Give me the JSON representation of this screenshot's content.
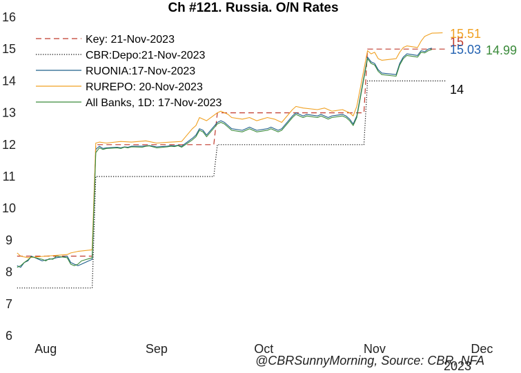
{
  "chart_data": {
    "type": "line",
    "title": "Ch #121. Russia. O/N Rates",
    "credit": "@CBRSunnyMorning, Source: CBR, NFA",
    "xlabel": "",
    "ylabel": "",
    "x_start": "2023-07-25",
    "x_end": "2023-12-10",
    "ylim": [
      6,
      16
    ],
    "yticks": [
      6,
      7,
      8,
      9,
      10,
      11,
      12,
      13,
      14,
      15,
      16
    ],
    "xticks": [
      {
        "date": "2023-08-01",
        "label": "Aug"
      },
      {
        "date": "2023-09-01",
        "label": "Sep"
      },
      {
        "date": "2023-10-01",
        "label": "Oct"
      },
      {
        "date": "2023-11-01",
        "label": "Nov"
      },
      {
        "date": "2023-12-01",
        "label": "Dec"
      }
    ],
    "year_label": "2023",
    "grid": false,
    "legend_position": "top-left",
    "series": [
      {
        "name": "Key: 21-Nov-2023",
        "color": "#c0392b",
        "style": "dashed",
        "end_label": "15",
        "points": [
          [
            "2023-07-24",
            8.5
          ],
          [
            "2023-08-14",
            8.5
          ],
          [
            "2023-08-15",
            12.0
          ],
          [
            "2023-09-17",
            12.0
          ],
          [
            "2023-09-18",
            13.0
          ],
          [
            "2023-10-29",
            13.0
          ],
          [
            "2023-10-30",
            15.0
          ],
          [
            "2023-11-21",
            15.0
          ]
        ]
      },
      {
        "name": "CBR:Depo:21-Nov-2023",
        "color": "#000000",
        "style": "dotted",
        "end_label": "14",
        "points": [
          [
            "2023-07-24",
            7.5
          ],
          [
            "2023-08-14",
            7.5
          ],
          [
            "2023-08-15",
            11.0
          ],
          [
            "2023-09-17",
            11.0
          ],
          [
            "2023-09-18",
            12.0
          ],
          [
            "2023-10-29",
            12.0
          ],
          [
            "2023-10-30",
            14.0
          ],
          [
            "2023-11-21",
            14.0
          ]
        ]
      },
      {
        "name": "RUONIA:17-Nov-2023",
        "color": "#1f5f8b",
        "style": "solid",
        "end_label": "15.03",
        "end_label_color": "#1f5fb0",
        "points": [
          [
            "2023-07-24",
            8.2
          ],
          [
            "2023-07-25",
            8.15
          ],
          [
            "2023-07-26",
            8.3
          ],
          [
            "2023-07-27",
            8.35
          ],
          [
            "2023-07-28",
            8.5
          ],
          [
            "2023-07-31",
            8.35
          ],
          [
            "2023-08-01",
            8.38
          ],
          [
            "2023-08-02",
            8.4
          ],
          [
            "2023-08-03",
            8.42
          ],
          [
            "2023-08-04",
            8.45
          ],
          [
            "2023-08-07",
            8.5
          ],
          [
            "2023-08-08",
            8.3
          ],
          [
            "2023-08-09",
            8.25
          ],
          [
            "2023-08-10",
            8.2
          ],
          [
            "2023-08-11",
            8.25
          ],
          [
            "2023-08-14",
            8.4
          ],
          [
            "2023-08-15",
            11.85
          ],
          [
            "2023-08-16",
            11.95
          ],
          [
            "2023-08-17",
            11.88
          ],
          [
            "2023-08-18",
            11.9
          ],
          [
            "2023-08-21",
            11.92
          ],
          [
            "2023-08-22",
            11.9
          ],
          [
            "2023-08-23",
            11.93
          ],
          [
            "2023-08-24",
            11.92
          ],
          [
            "2023-08-25",
            11.95
          ],
          [
            "2023-08-28",
            11.95
          ],
          [
            "2023-08-29",
            11.96
          ],
          [
            "2023-08-30",
            11.97
          ],
          [
            "2023-08-31",
            11.95
          ],
          [
            "2023-09-01",
            11.93
          ],
          [
            "2023-09-04",
            11.95
          ],
          [
            "2023-09-05",
            11.97
          ],
          [
            "2023-09-06",
            11.96
          ],
          [
            "2023-09-07",
            11.98
          ],
          [
            "2023-09-08",
            11.95
          ],
          [
            "2023-09-11",
            12.2
          ],
          [
            "2023-09-12",
            12.3
          ],
          [
            "2023-09-13",
            12.5
          ],
          [
            "2023-09-14",
            12.45
          ],
          [
            "2023-09-15",
            12.3
          ],
          [
            "2023-09-18",
            12.7
          ],
          [
            "2023-09-19",
            12.75
          ],
          [
            "2023-09-20",
            12.7
          ],
          [
            "2023-09-21",
            12.6
          ],
          [
            "2023-09-22",
            12.5
          ],
          [
            "2023-09-25",
            12.45
          ],
          [
            "2023-09-26",
            12.5
          ],
          [
            "2023-09-27",
            12.55
          ],
          [
            "2023-09-28",
            12.5
          ],
          [
            "2023-09-29",
            12.45
          ],
          [
            "2023-10-02",
            12.5
          ],
          [
            "2023-10-03",
            12.55
          ],
          [
            "2023-10-04",
            12.5
          ],
          [
            "2023-10-05",
            12.45
          ],
          [
            "2023-10-06",
            12.5
          ],
          [
            "2023-10-09",
            12.9
          ],
          [
            "2023-10-10",
            13.0
          ],
          [
            "2023-10-11",
            12.95
          ],
          [
            "2023-10-12",
            12.9
          ],
          [
            "2023-10-13",
            12.95
          ],
          [
            "2023-10-16",
            12.9
          ],
          [
            "2023-10-17",
            12.95
          ],
          [
            "2023-10-18",
            12.9
          ],
          [
            "2023-10-19",
            12.85
          ],
          [
            "2023-10-20",
            12.9
          ],
          [
            "2023-10-23",
            12.95
          ],
          [
            "2023-10-24",
            12.9
          ],
          [
            "2023-10-25",
            12.8
          ],
          [
            "2023-10-26",
            12.65
          ],
          [
            "2023-10-27",
            12.9
          ],
          [
            "2023-10-30",
            14.75
          ],
          [
            "2023-10-31",
            14.6
          ],
          [
            "2023-11-01",
            14.55
          ],
          [
            "2023-11-02",
            14.35
          ],
          [
            "2023-11-03",
            14.25
          ],
          [
            "2023-11-07",
            14.2
          ],
          [
            "2023-11-08",
            14.55
          ],
          [
            "2023-11-09",
            14.75
          ],
          [
            "2023-11-10",
            14.85
          ],
          [
            "2023-11-13",
            14.8
          ],
          [
            "2023-11-14",
            14.95
          ],
          [
            "2023-11-15",
            14.92
          ],
          [
            "2023-11-16",
            15.0
          ],
          [
            "2023-11-17",
            15.03
          ]
        ]
      },
      {
        "name": "RUREPO: 20-Nov-2023",
        "color": "#f0a020",
        "style": "solid",
        "end_label": "15.51",
        "end_label_color": "#f0a020",
        "points": [
          [
            "2023-07-24",
            8.6
          ],
          [
            "2023-07-25",
            8.5
          ],
          [
            "2023-07-27",
            8.45
          ],
          [
            "2023-08-01",
            8.5
          ],
          [
            "2023-08-07",
            8.55
          ],
          [
            "2023-08-08",
            8.6
          ],
          [
            "2023-08-10",
            8.65
          ],
          [
            "2023-08-14",
            8.7
          ],
          [
            "2023-08-15",
            12.05
          ],
          [
            "2023-08-16",
            12.08
          ],
          [
            "2023-08-18",
            12.05
          ],
          [
            "2023-08-22",
            12.1
          ],
          [
            "2023-08-25",
            12.08
          ],
          [
            "2023-08-29",
            12.12
          ],
          [
            "2023-09-01",
            12.05
          ],
          [
            "2023-09-05",
            12.08
          ],
          [
            "2023-09-08",
            12.1
          ],
          [
            "2023-09-11",
            12.5
          ],
          [
            "2023-09-12",
            12.6
          ],
          [
            "2023-09-13",
            12.85
          ],
          [
            "2023-09-15",
            12.75
          ],
          [
            "2023-09-18",
            13.0
          ],
          [
            "2023-09-19",
            13.05
          ],
          [
            "2023-09-21",
            12.95
          ],
          [
            "2023-09-22",
            12.85
          ],
          [
            "2023-09-25",
            12.8
          ],
          [
            "2023-09-27",
            12.85
          ],
          [
            "2023-09-29",
            12.75
          ],
          [
            "2023-10-02",
            12.85
          ],
          [
            "2023-10-04",
            12.8
          ],
          [
            "2023-10-06",
            12.7
          ],
          [
            "2023-10-09",
            13.1
          ],
          [
            "2023-10-10",
            13.2
          ],
          [
            "2023-10-12",
            13.15
          ],
          [
            "2023-10-16",
            13.1
          ],
          [
            "2023-10-18",
            13.15
          ],
          [
            "2023-10-20",
            13.05
          ],
          [
            "2023-10-23",
            13.1
          ],
          [
            "2023-10-25",
            13.0
          ],
          [
            "2023-10-26",
            12.9
          ],
          [
            "2023-10-27",
            13.2
          ],
          [
            "2023-10-30",
            14.95
          ],
          [
            "2023-10-31",
            14.85
          ],
          [
            "2023-11-01",
            14.9
          ],
          [
            "2023-11-02",
            14.7
          ],
          [
            "2023-11-03",
            14.65
          ],
          [
            "2023-11-07",
            14.7
          ],
          [
            "2023-11-08",
            14.9
          ],
          [
            "2023-11-09",
            15.05
          ],
          [
            "2023-11-10",
            15.1
          ],
          [
            "2023-11-13",
            15.05
          ],
          [
            "2023-11-14",
            15.25
          ],
          [
            "2023-11-15",
            15.4
          ],
          [
            "2023-11-16",
            15.45
          ],
          [
            "2023-11-17",
            15.5
          ],
          [
            "2023-11-20",
            15.51
          ]
        ]
      },
      {
        "name": "All Banks, 1D: 17-Nov-2023",
        "color": "#3a8a3a",
        "style": "solid",
        "end_label": "14.99",
        "end_label_color": "#3a8a3a",
        "points": [
          [
            "2023-07-24",
            8.15
          ],
          [
            "2023-07-25",
            8.2
          ],
          [
            "2023-07-26",
            8.3
          ],
          [
            "2023-07-27",
            8.38
          ],
          [
            "2023-07-28",
            8.48
          ],
          [
            "2023-07-31",
            8.4
          ],
          [
            "2023-08-01",
            8.35
          ],
          [
            "2023-08-02",
            8.42
          ],
          [
            "2023-08-03",
            8.4
          ],
          [
            "2023-08-04",
            8.5
          ],
          [
            "2023-08-07",
            8.45
          ],
          [
            "2023-08-08",
            8.25
          ],
          [
            "2023-08-09",
            8.2
          ],
          [
            "2023-08-10",
            8.25
          ],
          [
            "2023-08-11",
            8.35
          ],
          [
            "2023-08-14",
            8.45
          ],
          [
            "2023-08-15",
            11.75
          ],
          [
            "2023-08-16",
            11.9
          ],
          [
            "2023-08-17",
            11.85
          ],
          [
            "2023-08-18",
            11.88
          ],
          [
            "2023-08-21",
            11.9
          ],
          [
            "2023-08-22",
            11.88
          ],
          [
            "2023-08-23",
            11.92
          ],
          [
            "2023-08-24",
            11.9
          ],
          [
            "2023-08-25",
            11.93
          ],
          [
            "2023-08-28",
            11.92
          ],
          [
            "2023-08-29",
            11.95
          ],
          [
            "2023-08-30",
            11.96
          ],
          [
            "2023-08-31",
            11.93
          ],
          [
            "2023-09-01",
            11.9
          ],
          [
            "2023-09-04",
            11.93
          ],
          [
            "2023-09-05",
            11.95
          ],
          [
            "2023-09-06",
            11.94
          ],
          [
            "2023-09-07",
            11.97
          ],
          [
            "2023-09-08",
            11.92
          ],
          [
            "2023-09-11",
            12.15
          ],
          [
            "2023-09-12",
            12.25
          ],
          [
            "2023-09-13",
            12.45
          ],
          [
            "2023-09-14",
            12.4
          ],
          [
            "2023-09-15",
            12.25
          ],
          [
            "2023-09-18",
            12.65
          ],
          [
            "2023-09-19",
            12.7
          ],
          [
            "2023-09-20",
            12.65
          ],
          [
            "2023-09-21",
            12.55
          ],
          [
            "2023-09-22",
            12.45
          ],
          [
            "2023-09-25",
            12.4
          ],
          [
            "2023-09-26",
            12.45
          ],
          [
            "2023-09-27",
            12.5
          ],
          [
            "2023-09-28",
            12.45
          ],
          [
            "2023-09-29",
            12.4
          ],
          [
            "2023-10-02",
            12.45
          ],
          [
            "2023-10-03",
            12.5
          ],
          [
            "2023-10-04",
            12.45
          ],
          [
            "2023-10-05",
            12.4
          ],
          [
            "2023-10-06",
            12.45
          ],
          [
            "2023-10-09",
            12.85
          ],
          [
            "2023-10-10",
            12.95
          ],
          [
            "2023-10-11",
            12.9
          ],
          [
            "2023-10-12",
            12.85
          ],
          [
            "2023-10-13",
            12.9
          ],
          [
            "2023-10-16",
            12.85
          ],
          [
            "2023-10-17",
            12.9
          ],
          [
            "2023-10-18",
            12.85
          ],
          [
            "2023-10-19",
            12.8
          ],
          [
            "2023-10-20",
            12.85
          ],
          [
            "2023-10-23",
            12.9
          ],
          [
            "2023-10-24",
            12.85
          ],
          [
            "2023-10-25",
            12.75
          ],
          [
            "2023-10-26",
            12.6
          ],
          [
            "2023-10-27",
            12.85
          ],
          [
            "2023-10-30",
            14.7
          ],
          [
            "2023-10-31",
            14.55
          ],
          [
            "2023-11-01",
            14.5
          ],
          [
            "2023-11-02",
            14.3
          ],
          [
            "2023-11-03",
            14.2
          ],
          [
            "2023-11-07",
            14.15
          ],
          [
            "2023-11-08",
            14.5
          ],
          [
            "2023-11-09",
            14.7
          ],
          [
            "2023-11-10",
            14.8
          ],
          [
            "2023-11-13",
            14.75
          ],
          [
            "2023-11-14",
            14.9
          ],
          [
            "2023-11-15",
            14.88
          ],
          [
            "2023-11-16",
            14.95
          ],
          [
            "2023-11-17",
            14.99
          ]
        ]
      }
    ]
  }
}
